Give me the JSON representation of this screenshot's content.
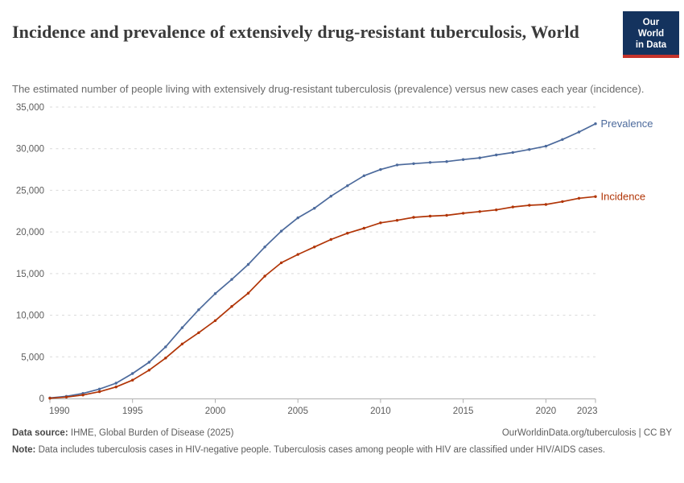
{
  "header": {
    "title": "Incidence and prevalence of extensively drug-resistant tuberculosis, World",
    "subtitle": "The estimated number of people living with extensively drug-resistant tuberculosis (prevalence) versus new cases each year (incidence).",
    "logo": {
      "line1": "Our World",
      "line2": "in Data",
      "bg_color": "#14335e",
      "accent_color": "#c5332b"
    }
  },
  "footer": {
    "source_label": "Data source:",
    "source_text": "IHME, Global Burden of Disease (2025)",
    "link_text": "OurWorldinData.org/tuberculosis | CC BY",
    "note_label": "Note:",
    "note_text": "Data includes tuberculosis cases in HIV-negative people. Tuberculosis cases among people with HIV are classified under HIV/AIDS cases."
  },
  "chart_data": {
    "type": "line",
    "title": "Incidence and prevalence of extensively drug-resistant tuberculosis, World",
    "x": [
      1990,
      1991,
      1992,
      1993,
      1994,
      1995,
      1996,
      1997,
      1998,
      1999,
      2000,
      2001,
      2002,
      2003,
      2004,
      2005,
      2006,
      2007,
      2008,
      2009,
      2010,
      2011,
      2012,
      2013,
      2014,
      2015,
      2016,
      2017,
      2018,
      2019,
      2020,
      2021,
      2022,
      2023
    ],
    "series": [
      {
        "name": "Prevalence",
        "color": "#4C6A9C",
        "values": [
          70,
          260,
          610,
          1130,
          1840,
          3000,
          4350,
          6200,
          8500,
          10650,
          12600,
          14300,
          16100,
          18200,
          20100,
          21700,
          22850,
          24300,
          25550,
          26750,
          27500,
          28050,
          28200,
          28350,
          28450,
          28700,
          28900,
          29250,
          29550,
          29900,
          30300,
          31100,
          32000,
          33000
        ]
      },
      {
        "name": "Incidence",
        "color": "#B13507",
        "values": [
          30,
          160,
          420,
          810,
          1380,
          2200,
          3400,
          4850,
          6550,
          7900,
          9350,
          11050,
          12650,
          14700,
          16300,
          17300,
          18200,
          19100,
          19850,
          20450,
          21100,
          21400,
          21750,
          21900,
          22000,
          22250,
          22450,
          22650,
          23000,
          23200,
          23300,
          23650,
          24050,
          24250
        ]
      }
    ],
    "xlabel": "",
    "ylabel": "",
    "xlim": [
      1990,
      2023
    ],
    "ylim": [
      0,
      35000
    ],
    "xticks": [
      1990,
      1995,
      2000,
      2005,
      2010,
      2015,
      2020,
      2023
    ],
    "yticks": [
      0,
      5000,
      10000,
      15000,
      20000,
      25000,
      30000,
      35000
    ],
    "grid": "horizontal dashed",
    "legend_position": "end-of-line labels",
    "markers": true,
    "style": {
      "grid_color": "#d9d9d9",
      "axis_color": "#afafaf",
      "tick_label_color": "#5c5c5c"
    }
  }
}
